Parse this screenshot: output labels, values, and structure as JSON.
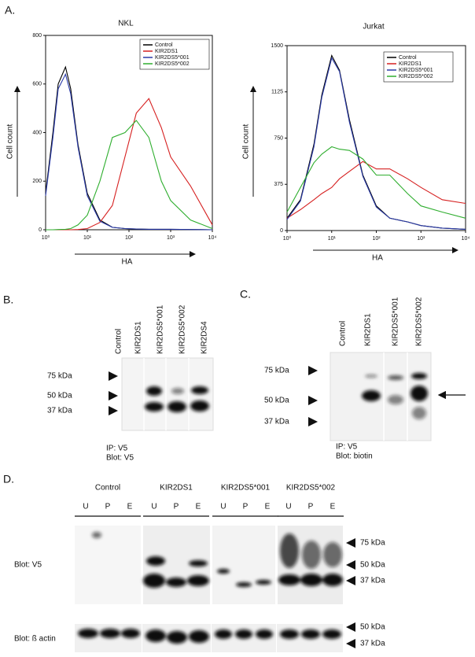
{
  "panel_a": {
    "label": "A."
  },
  "chart_data": [
    {
      "type": "line",
      "title": "NKL",
      "xlabel": "HA",
      "ylabel": "Cell count",
      "log_x": true,
      "xlim": [
        1,
        10000
      ],
      "xticks": [
        {
          "value": 1,
          "label": "10⁰"
        },
        {
          "value": 10,
          "label": "10¹"
        },
        {
          "value": 100,
          "label": "10²"
        },
        {
          "value": 1000,
          "label": "10³"
        },
        {
          "value": 10000,
          "label": "10⁴"
        }
      ],
      "ylim": [
        0,
        800
      ],
      "yticks": [
        0,
        200,
        400,
        600,
        800
      ],
      "legend": "upper right",
      "x": [
        1,
        1.5,
        2,
        3,
        4,
        6,
        10,
        20,
        40,
        80,
        150,
        300,
        600,
        1000,
        3000,
        10000
      ],
      "series": [
        {
          "name": "Control",
          "color": "#000000",
          "values": [
            150,
            400,
            600,
            670,
            580,
            350,
            150,
            40,
            10,
            5,
            3,
            2,
            2,
            2,
            1,
            0
          ]
        },
        {
          "name": "KIR2DS1",
          "color": "#d62020",
          "values": [
            0,
            0,
            0,
            0,
            0,
            1,
            5,
            30,
            100,
            300,
            480,
            540,
            420,
            300,
            180,
            20
          ]
        },
        {
          "name": "KIR2DS5*001",
          "color": "#2a3aa8",
          "values": [
            140,
            380,
            580,
            640,
            560,
            340,
            140,
            35,
            10,
            5,
            3,
            2,
            2,
            2,
            1,
            0
          ]
        },
        {
          "name": "KIR2DS5*002",
          "color": "#2fae2f",
          "values": [
            0,
            0,
            1,
            2,
            5,
            20,
            60,
            200,
            380,
            400,
            450,
            380,
            200,
            120,
            40,
            5
          ]
        }
      ]
    },
    {
      "type": "line",
      "title": "Jurkat",
      "xlabel": "HA",
      "ylabel": "Cell count",
      "log_x": true,
      "xlim": [
        1,
        10000
      ],
      "xticks": [
        {
          "value": 1,
          "label": "10⁰"
        },
        {
          "value": 10,
          "label": "10¹"
        },
        {
          "value": 100,
          "label": "10²"
        },
        {
          "value": 1000,
          "label": "10³"
        },
        {
          "value": 10000,
          "label": "10⁴"
        }
      ],
      "ylim": [
        0,
        1500
      ],
      "yticks": [
        0,
        375,
        750,
        1125,
        1500
      ],
      "legend": "upper right",
      "x": [
        1,
        2,
        4,
        6,
        10,
        15,
        25,
        50,
        100,
        200,
        500,
        1000,
        3000,
        10000
      ],
      "series": [
        {
          "name": "Control",
          "color": "#000000",
          "values": [
            100,
            250,
            700,
            1100,
            1420,
            1300,
            900,
            450,
            200,
            100,
            70,
            40,
            20,
            10
          ]
        },
        {
          "name": "KIR2DS1",
          "color": "#d62020",
          "values": [
            100,
            170,
            250,
            300,
            350,
            420,
            480,
            560,
            500,
            500,
            420,
            350,
            250,
            220
          ]
        },
        {
          "name": "KIR2DS5*001",
          "color": "#2a3aa8",
          "values": [
            90,
            240,
            680,
            1080,
            1400,
            1290,
            880,
            440,
            190,
            100,
            70,
            40,
            20,
            10
          ]
        },
        {
          "name": "KIR2DS5*002",
          "color": "#2fae2f",
          "values": [
            150,
            350,
            550,
            620,
            680,
            660,
            650,
            580,
            450,
            450,
            300,
            200,
            150,
            100
          ]
        }
      ]
    }
  ],
  "panel_b": {
    "label": "B.",
    "lanes": [
      "Control",
      "KIR2DS1",
      "KIR2DS5*001",
      "KIR2DS5*002",
      "KIR2DS4"
    ],
    "markers": [
      "75 kDa",
      "50 kDa",
      "37 kDa"
    ],
    "note": [
      "IP: V5",
      "Blot: V5"
    ]
  },
  "panel_c": {
    "label": "C.",
    "lanes": [
      "Control",
      "KIR2DS1",
      "KIR2DS5*001",
      "KIR2DS5*002"
    ],
    "markers": [
      "75 kDa",
      "50 kDa",
      "37 kDa"
    ],
    "note": [
      "IP: V5",
      "Blot: biotin"
    ]
  },
  "panel_d": {
    "label": "D.",
    "groups": [
      {
        "name": "Control",
        "lanes": [
          "U",
          "P",
          "E"
        ]
      },
      {
        "name": "KIR2DS1",
        "lanes": [
          "U",
          "P",
          "E"
        ]
      },
      {
        "name": "KIR2DS5*001",
        "lanes": [
          "U",
          "P",
          "E"
        ]
      },
      {
        "name": "KIR2DS5*002",
        "lanes": [
          "U",
          "P",
          "E"
        ]
      }
    ],
    "rows": [
      {
        "label": "Blot: V5",
        "markers": [
          "75 kDa",
          "50 kDa",
          "37 kDa"
        ]
      },
      {
        "label": "Blot: ß actin",
        "markers": [
          "50 kDa",
          "37 kDa"
        ]
      }
    ]
  }
}
